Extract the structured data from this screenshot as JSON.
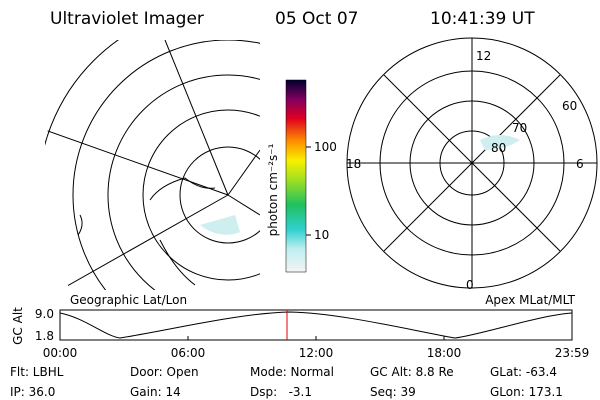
{
  "header": {
    "instrument": "Ultraviolet Imager",
    "date": "05 Oct 07",
    "time": "10:41:39 UT"
  },
  "colorbar": {
    "label": "photon cm⁻²s⁻¹",
    "ticks": [
      "100",
      "10"
    ]
  },
  "polar": {
    "labels": [
      "12",
      "18",
      "6",
      "0",
      "60",
      "70",
      "80"
    ]
  },
  "altitude_plot": {
    "left_title": "Geographic Lat/Lon",
    "right_title": "Apex MLat/MLT",
    "y_label": "GC Alt",
    "y_ticks": [
      "9.0",
      "1.8"
    ],
    "x_ticks": [
      "00:00",
      "06:00",
      "12:00",
      "18:00",
      "23:59"
    ]
  },
  "footer": {
    "rows": [
      [
        "Flt: LBHL",
        "Door: Open",
        "Mode: Normal",
        "GC Alt: 8.8 Re",
        "GLat: -63.4"
      ],
      [
        "IP: 36.0",
        "Gain: 14",
        "Dsp:   -3.1",
        "Seq: 39",
        "GLon: 173.1"
      ]
    ]
  }
}
